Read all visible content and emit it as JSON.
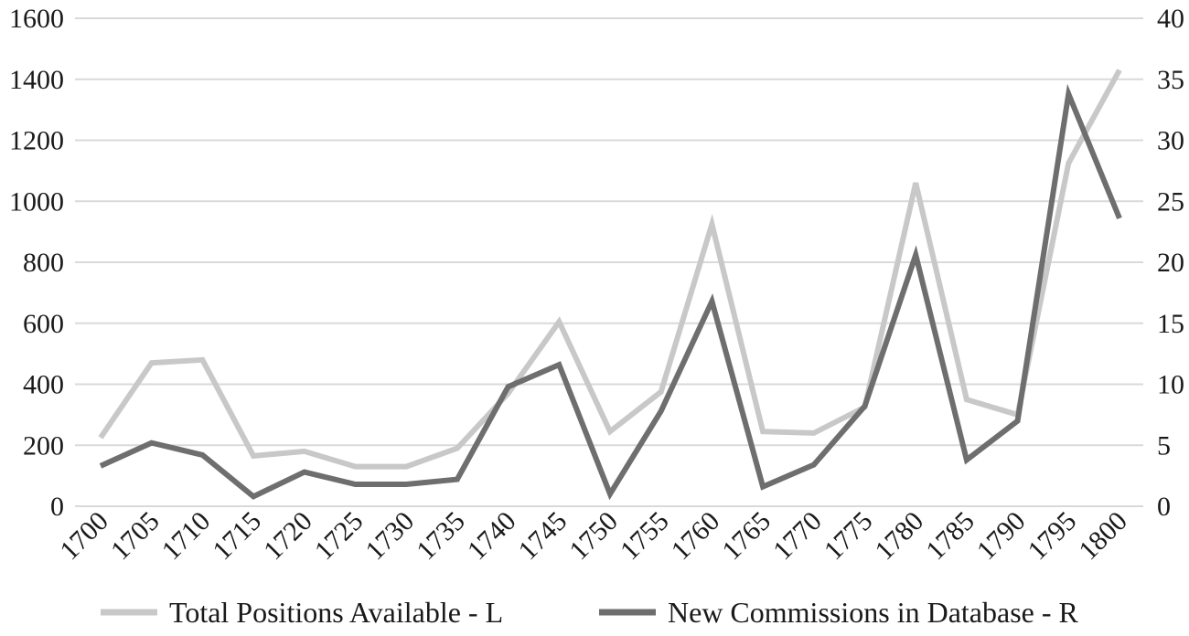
{
  "chart_data": {
    "type": "line",
    "categories": [
      "1700",
      "1705",
      "1710",
      "1715",
      "1720",
      "1725",
      "1730",
      "1735",
      "1740",
      "1745",
      "1750",
      "1755",
      "1760",
      "1765",
      "1770",
      "1775",
      "1780",
      "1785",
      "1790",
      "1795",
      "1800"
    ],
    "series": [
      {
        "name": "Total Positions Available - L",
        "axis": "left",
        "color": "#c8c8c8",
        "values": [
          225,
          470,
          480,
          165,
          180,
          130,
          130,
          190,
          370,
          605,
          245,
          375,
          925,
          245,
          240,
          325,
          1060,
          350,
          300,
          1125,
          1430
        ]
      },
      {
        "name": "New Commissions in Database - R",
        "axis": "right",
        "color": "#6e6e6e",
        "values": [
          3.3,
          5.2,
          4.2,
          0.8,
          2.8,
          1.8,
          1.8,
          2.2,
          9.8,
          11.6,
          1.0,
          7.8,
          16.8,
          1.6,
          3.4,
          8.2,
          20.6,
          3.8,
          7.0,
          33.8,
          23.6
        ]
      }
    ],
    "y_left": {
      "min": 0,
      "max": 1600,
      "ticks": [
        "0",
        "200",
        "400",
        "600",
        "800",
        "1000",
        "1200",
        "1400",
        "1600"
      ]
    },
    "y_right": {
      "min": 0,
      "max": 40,
      "ticks": [
        "0",
        "5",
        "10",
        "15",
        "20",
        "25",
        "30",
        "35",
        "40"
      ]
    },
    "grid": true,
    "legend_position": "bottom"
  }
}
